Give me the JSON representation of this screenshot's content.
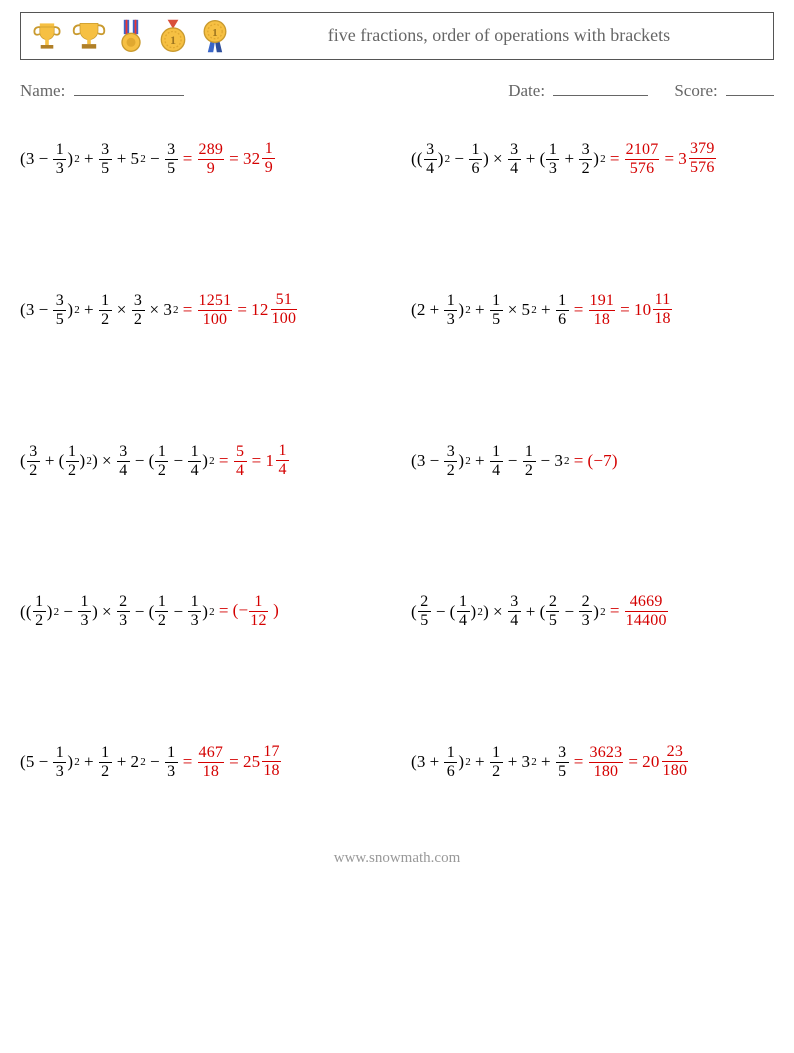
{
  "header": {
    "title": "five fractions, order of operations with brackets",
    "icons": [
      "trophy-gold-handles",
      "trophy-gold-cup",
      "medal-ribbon",
      "medal-gold-1",
      "medal-silver-1"
    ]
  },
  "meta": {
    "name_label": "Name:",
    "date_label": "Date:",
    "score_label": "Score:"
  },
  "rows": [
    {
      "left": {
        "expr": [
          {
            "t": "txt",
            "v": "(3"
          },
          {
            "t": "op",
            "v": "−"
          },
          {
            "t": "frac",
            "n": "1",
            "d": "3"
          },
          {
            "t": "txt",
            "v": ")"
          },
          {
            "t": "sup",
            "v": "2"
          },
          {
            "t": "op",
            "v": "+"
          },
          {
            "t": "frac",
            "n": "3",
            "d": "5"
          },
          {
            "t": "op",
            "v": "+"
          },
          {
            "t": "txt",
            "v": "5"
          },
          {
            "t": "sup",
            "v": "2"
          },
          {
            "t": "op",
            "v": "−"
          },
          {
            "t": "frac",
            "n": "3",
            "d": "5"
          }
        ],
        "answer": [
          {
            "t": "op",
            "v": "="
          },
          {
            "t": "frac",
            "n": "289",
            "d": "9"
          },
          {
            "t": "op",
            "v": "="
          },
          {
            "t": "mixed",
            "w": "32",
            "n": "1",
            "d": "9"
          }
        ]
      },
      "right": {
        "expr": [
          {
            "t": "txt",
            "v": "(("
          },
          {
            "t": "frac",
            "n": "3",
            "d": "4"
          },
          {
            "t": "txt",
            "v": ")"
          },
          {
            "t": "sup",
            "v": "2"
          },
          {
            "t": "op",
            "v": "−"
          },
          {
            "t": "frac",
            "n": "1",
            "d": "6"
          },
          {
            "t": "txt",
            "v": ")"
          },
          {
            "t": "op",
            "v": "×"
          },
          {
            "t": "frac",
            "n": "3",
            "d": "4"
          },
          {
            "t": "op",
            "v": "+"
          },
          {
            "t": "txt",
            "v": "("
          },
          {
            "t": "frac",
            "n": "1",
            "d": "3"
          },
          {
            "t": "op",
            "v": "+"
          },
          {
            "t": "frac",
            "n": "3",
            "d": "2"
          },
          {
            "t": "txt",
            "v": ")"
          },
          {
            "t": "sup",
            "v": "2"
          }
        ],
        "answer": [
          {
            "t": "op",
            "v": "="
          },
          {
            "t": "frac",
            "n": "2107",
            "d": "576"
          },
          {
            "t": "op",
            "v": "="
          },
          {
            "t": "mixed",
            "w": "3",
            "n": "379",
            "d": "576"
          }
        ]
      }
    },
    {
      "left": {
        "expr": [
          {
            "t": "txt",
            "v": "(3"
          },
          {
            "t": "op",
            "v": "−"
          },
          {
            "t": "frac",
            "n": "3",
            "d": "5"
          },
          {
            "t": "txt",
            "v": ")"
          },
          {
            "t": "sup",
            "v": "2"
          },
          {
            "t": "op",
            "v": "+"
          },
          {
            "t": "frac",
            "n": "1",
            "d": "2"
          },
          {
            "t": "op",
            "v": "×"
          },
          {
            "t": "frac",
            "n": "3",
            "d": "2"
          },
          {
            "t": "op",
            "v": "×"
          },
          {
            "t": "txt",
            "v": "3"
          },
          {
            "t": "sup",
            "v": "2"
          }
        ],
        "answer": [
          {
            "t": "op",
            "v": "="
          },
          {
            "t": "frac",
            "n": "1251",
            "d": "100"
          },
          {
            "t": "op",
            "v": "="
          },
          {
            "t": "mixed",
            "w": "12",
            "n": "51",
            "d": "100"
          }
        ]
      },
      "right": {
        "expr": [
          {
            "t": "txt",
            "v": "(2"
          },
          {
            "t": "op",
            "v": "+"
          },
          {
            "t": "frac",
            "n": "1",
            "d": "3"
          },
          {
            "t": "txt",
            "v": ")"
          },
          {
            "t": "sup",
            "v": "2"
          },
          {
            "t": "op",
            "v": "+"
          },
          {
            "t": "frac",
            "n": "1",
            "d": "5"
          },
          {
            "t": "op",
            "v": "×"
          },
          {
            "t": "txt",
            "v": " 5"
          },
          {
            "t": "sup",
            "v": "2"
          },
          {
            "t": "op",
            "v": "+"
          },
          {
            "t": "frac",
            "n": "1",
            "d": "6"
          }
        ],
        "answer": [
          {
            "t": "op",
            "v": "="
          },
          {
            "t": "frac",
            "n": "191",
            "d": "18"
          },
          {
            "t": "op",
            "v": "="
          },
          {
            "t": "mixed",
            "w": "10",
            "n": "11",
            "d": "18"
          }
        ]
      }
    },
    {
      "left": {
        "expr": [
          {
            "t": "txt",
            "v": "("
          },
          {
            "t": "frac",
            "n": "3",
            "d": "2"
          },
          {
            "t": "op",
            "v": "+"
          },
          {
            "t": "txt",
            "v": "("
          },
          {
            "t": "frac",
            "n": "1",
            "d": "2"
          },
          {
            "t": "txt",
            "v": ")"
          },
          {
            "t": "sup",
            "v": "2"
          },
          {
            "t": "txt",
            "v": ")"
          },
          {
            "t": "op",
            "v": "×"
          },
          {
            "t": "frac",
            "n": "3",
            "d": "4"
          },
          {
            "t": "op",
            "v": "−"
          },
          {
            "t": "txt",
            "v": "("
          },
          {
            "t": "frac",
            "n": "1",
            "d": "2"
          },
          {
            "t": "op",
            "v": "−"
          },
          {
            "t": "frac",
            "n": "1",
            "d": "4"
          },
          {
            "t": "txt",
            "v": ")"
          },
          {
            "t": "sup",
            "v": "2"
          }
        ],
        "answer": [
          {
            "t": "op",
            "v": "="
          },
          {
            "t": "frac",
            "n": "5",
            "d": "4"
          },
          {
            "t": "op",
            "v": "="
          },
          {
            "t": "mixed",
            "w": "1",
            "n": "1",
            "d": "4"
          }
        ]
      },
      "right": {
        "expr": [
          {
            "t": "txt",
            "v": "(3"
          },
          {
            "t": "op",
            "v": "−"
          },
          {
            "t": "frac",
            "n": "3",
            "d": "2"
          },
          {
            "t": "txt",
            "v": ")"
          },
          {
            "t": "sup",
            "v": "2"
          },
          {
            "t": "op",
            "v": "+"
          },
          {
            "t": "frac",
            "n": "1",
            "d": "4"
          },
          {
            "t": "op",
            "v": "−"
          },
          {
            "t": "frac",
            "n": "1",
            "d": "2"
          },
          {
            "t": "op",
            "v": "−"
          },
          {
            "t": "txt",
            "v": "3"
          },
          {
            "t": "sup",
            "v": "2"
          }
        ],
        "answer": [
          {
            "t": "op",
            "v": "="
          },
          {
            "t": "txt",
            "v": "(−7)"
          }
        ]
      }
    },
    {
      "left": {
        "expr": [
          {
            "t": "txt",
            "v": "(("
          },
          {
            "t": "frac",
            "n": "1",
            "d": "2"
          },
          {
            "t": "txt",
            "v": ")"
          },
          {
            "t": "sup",
            "v": "2"
          },
          {
            "t": "op",
            "v": "−"
          },
          {
            "t": "frac",
            "n": "1",
            "d": "3"
          },
          {
            "t": "txt",
            "v": ")"
          },
          {
            "t": "op",
            "v": "×"
          },
          {
            "t": "frac",
            "n": "2",
            "d": "3"
          },
          {
            "t": "op",
            "v": "−"
          },
          {
            "t": "txt",
            "v": "("
          },
          {
            "t": "frac",
            "n": "1",
            "d": "2"
          },
          {
            "t": "op",
            "v": "−"
          },
          {
            "t": "frac",
            "n": "1",
            "d": "3"
          },
          {
            "t": "txt",
            "v": ")"
          },
          {
            "t": "sup",
            "v": "2"
          }
        ],
        "answer": [
          {
            "t": "op",
            "v": "="
          },
          {
            "t": "txt",
            "v": "(−"
          },
          {
            "t": "frac",
            "n": "1",
            "d": "12"
          },
          {
            "t": "txt",
            "v": " )"
          }
        ]
      },
      "right": {
        "expr": [
          {
            "t": "txt",
            "v": "("
          },
          {
            "t": "frac",
            "n": "2",
            "d": "5"
          },
          {
            "t": "op",
            "v": "−"
          },
          {
            "t": "txt",
            "v": "("
          },
          {
            "t": "frac",
            "n": "1",
            "d": "4"
          },
          {
            "t": "txt",
            "v": ")"
          },
          {
            "t": "sup",
            "v": "2"
          },
          {
            "t": "txt",
            "v": ")"
          },
          {
            "t": "op",
            "v": "×"
          },
          {
            "t": "frac",
            "n": "3",
            "d": "4"
          },
          {
            "t": "op",
            "v": "+"
          },
          {
            "t": "txt",
            "v": "("
          },
          {
            "t": "frac",
            "n": "2",
            "d": "5"
          },
          {
            "t": "op",
            "v": "−"
          },
          {
            "t": "frac",
            "n": "2",
            "d": "3"
          },
          {
            "t": "txt",
            "v": ")"
          },
          {
            "t": "sup",
            "v": "2"
          }
        ],
        "answer": [
          {
            "t": "op",
            "v": "="
          },
          {
            "t": "frac",
            "n": "4669",
            "d": "14400"
          }
        ]
      }
    },
    {
      "left": {
        "expr": [
          {
            "t": "txt",
            "v": "(5"
          },
          {
            "t": "op",
            "v": "−"
          },
          {
            "t": "frac",
            "n": "1",
            "d": "3"
          },
          {
            "t": "txt",
            "v": ")"
          },
          {
            "t": "sup",
            "v": "2"
          },
          {
            "t": "op",
            "v": "+"
          },
          {
            "t": "frac",
            "n": "1",
            "d": "2"
          },
          {
            "t": "op",
            "v": "+"
          },
          {
            "t": "txt",
            "v": "2"
          },
          {
            "t": "sup",
            "v": "2"
          },
          {
            "t": "op",
            "v": "−"
          },
          {
            "t": "frac",
            "n": "1",
            "d": "3"
          }
        ],
        "answer": [
          {
            "t": "op",
            "v": "="
          },
          {
            "t": "frac",
            "n": "467",
            "d": "18"
          },
          {
            "t": "op",
            "v": "="
          },
          {
            "t": "mixed",
            "w": "25",
            "n": "17",
            "d": "18"
          }
        ]
      },
      "right": {
        "expr": [
          {
            "t": "txt",
            "v": "(3"
          },
          {
            "t": "op",
            "v": "+"
          },
          {
            "t": "frac",
            "n": "1",
            "d": "6"
          },
          {
            "t": "txt",
            "v": ")"
          },
          {
            "t": "sup",
            "v": "2"
          },
          {
            "t": "op",
            "v": "+"
          },
          {
            "t": "frac",
            "n": "1",
            "d": "2"
          },
          {
            "t": "op",
            "v": "+"
          },
          {
            "t": "txt",
            "v": "3"
          },
          {
            "t": "sup",
            "v": "2"
          },
          {
            "t": "op",
            "v": "+"
          },
          {
            "t": "frac",
            "n": "3",
            "d": "5"
          }
        ],
        "answer": [
          {
            "t": "op",
            "v": "="
          },
          {
            "t": "frac",
            "n": "3623",
            "d": "180"
          },
          {
            "t": "op",
            "v": "="
          },
          {
            "t": "mixed",
            "w": "20",
            "n": "23",
            "d": "180"
          }
        ]
      }
    }
  ],
  "footer": "www.snowmath.com"
}
